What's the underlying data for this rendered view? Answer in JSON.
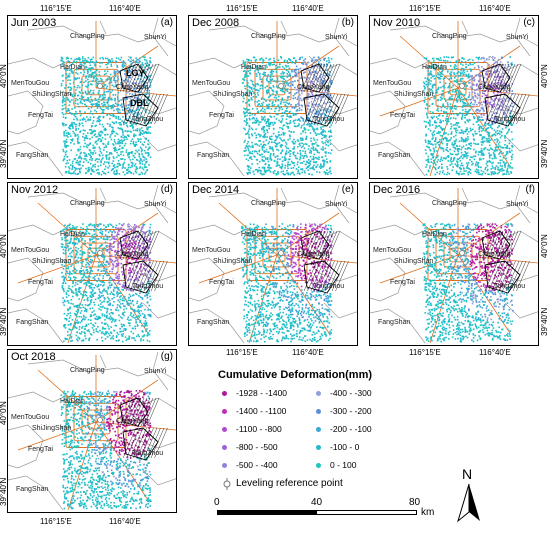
{
  "panels": [
    {
      "title": "Jun 2003",
      "letter": "(a)",
      "stage": 0
    },
    {
      "title": "Dec 2008",
      "letter": "(b)",
      "stage": 1
    },
    {
      "title": "Nov 2010",
      "letter": "(c)",
      "stage": 2
    },
    {
      "title": "Nov 2012",
      "letter": "(d)",
      "stage": 3
    },
    {
      "title": "Dec 2014",
      "letter": "(e)",
      "stage": 4
    },
    {
      "title": "Dec 2016",
      "letter": "(f)",
      "stage": 5
    },
    {
      "title": "Oct 2018",
      "letter": "(g)",
      "stage": 6
    }
  ],
  "districts": {
    "changping": "ChangPing",
    "shunyi": "ShunYi",
    "haidian": "HaiDian",
    "mentougou": "MenTouGou",
    "shijingshan": "ShiJingShan",
    "chaoyang": "ChaoYang",
    "fengtai": "FengTai",
    "tongzhou": "TongZhou",
    "fangshan": "FangShan"
  },
  "zones": {
    "lgy": "LGY",
    "dbl": "DBL"
  },
  "axes": {
    "lon1": "116°15′E",
    "lon2": "116°40′E",
    "lat1": "40°0′N",
    "lat2": "39°40′N"
  },
  "legend": {
    "title": "Cumulative Deformation(mm)",
    "classes": [
      {
        "label": "-1928 - -1400",
        "color": "#b0189a"
      },
      {
        "label": "-1400 - -1100",
        "color": "#c22bb8"
      },
      {
        "label": "-1100 - -800",
        "color": "#b04ad0"
      },
      {
        "label": "-800 - -500",
        "color": "#9a62d6"
      },
      {
        "label": "-500 - -400",
        "color": "#8f84d8"
      },
      {
        "label": "-400 - -300",
        "color": "#8f9fdc"
      },
      {
        "label": "-300 - -200",
        "color": "#5a8fd8"
      },
      {
        "label": "-200 - -100",
        "color": "#3aa6d6"
      },
      {
        "label": "-100 - 0",
        "color": "#21b7cf"
      },
      {
        "label": "0 - 100",
        "color": "#20c4c0"
      }
    ],
    "leveling": "Leveling reference point"
  },
  "scale": {
    "l0": "0",
    "l1": "40",
    "l2": "80",
    "unit": "km"
  },
  "north": "N"
}
